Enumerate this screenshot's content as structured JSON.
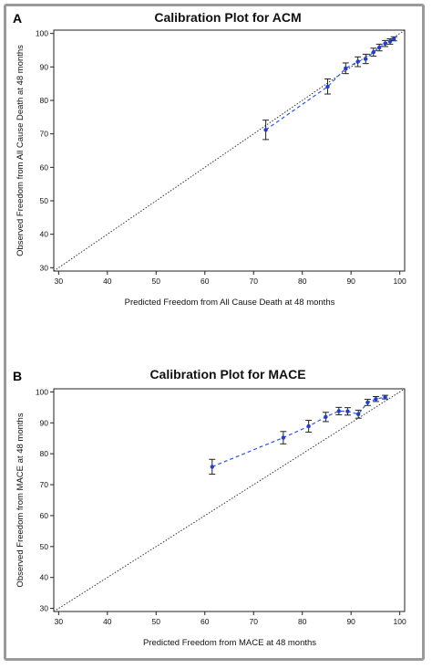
{
  "chart_data": [
    {
      "type": "scatter",
      "panel": "A",
      "title": "Calibration Plot for ACM",
      "xlabel": "Predicted Freedom from All Cause Death at 48 months",
      "ylabel": "Observed Freedom from All Cause Death at 48 months",
      "xlim": [
        29,
        101
      ],
      "ylim": [
        29,
        101
      ],
      "xticks": [
        30,
        40,
        50,
        60,
        70,
        80,
        90,
        100
      ],
      "yticks": [
        30,
        40,
        50,
        60,
        70,
        80,
        90,
        100
      ],
      "grid": false,
      "reference_line": true,
      "colors": {
        "points": "#1f3fd0",
        "line": "#2f55e0",
        "errorbar": "#222222",
        "reference": "#333333"
      },
      "points": [
        {
          "x": 72.5,
          "y": 71.2,
          "lo": 68.3,
          "hi": 74.1
        },
        {
          "x": 85.2,
          "y": 84.1,
          "lo": 81.9,
          "hi": 86.4
        },
        {
          "x": 88.9,
          "y": 89.6,
          "lo": 88.0,
          "hi": 91.2
        },
        {
          "x": 91.4,
          "y": 91.6,
          "lo": 90.1,
          "hi": 93.0
        },
        {
          "x": 93.0,
          "y": 92.4,
          "lo": 91.0,
          "hi": 93.8
        },
        {
          "x": 94.6,
          "y": 94.4,
          "lo": 93.2,
          "hi": 95.6
        },
        {
          "x": 95.8,
          "y": 95.8,
          "lo": 94.8,
          "hi": 96.8
        },
        {
          "x": 97.0,
          "y": 97.0,
          "lo": 96.1,
          "hi": 97.9
        },
        {
          "x": 98.0,
          "y": 97.6,
          "lo": 96.8,
          "hi": 98.4
        },
        {
          "x": 98.8,
          "y": 98.4,
          "lo": 97.8,
          "hi": 99.0
        }
      ]
    },
    {
      "type": "scatter",
      "panel": "B",
      "title": "Calibration Plot for MACE",
      "xlabel": "Predicted Freedom from MACE at 48 months",
      "ylabel": "Observed Freedom from MACE at 48 months",
      "xlim": [
        29,
        101
      ],
      "ylim": [
        29,
        101
      ],
      "xticks": [
        30,
        40,
        50,
        60,
        70,
        80,
        90,
        100
      ],
      "yticks": [
        30,
        40,
        50,
        60,
        70,
        80,
        90,
        100
      ],
      "grid": false,
      "reference_line": true,
      "colors": {
        "points": "#1f3fd0",
        "line": "#2f55e0",
        "errorbar": "#222222",
        "reference": "#333333"
      },
      "points": [
        {
          "x": 61.5,
          "y": 75.8,
          "lo": 73.4,
          "hi": 78.2
        },
        {
          "x": 76.1,
          "y": 85.2,
          "lo": 83.2,
          "hi": 87.2
        },
        {
          "x": 81.3,
          "y": 88.9,
          "lo": 87.0,
          "hi": 90.8
        },
        {
          "x": 84.8,
          "y": 91.9,
          "lo": 90.4,
          "hi": 93.4
        },
        {
          "x": 87.5,
          "y": 93.8,
          "lo": 92.6,
          "hi": 95.0
        },
        {
          "x": 89.3,
          "y": 93.7,
          "lo": 92.5,
          "hi": 94.9
        },
        {
          "x": 91.5,
          "y": 92.8,
          "lo": 91.5,
          "hi": 94.1
        },
        {
          "x": 93.4,
          "y": 96.6,
          "lo": 95.6,
          "hi": 97.6
        },
        {
          "x": 95.1,
          "y": 97.7,
          "lo": 96.9,
          "hi": 98.5
        },
        {
          "x": 97.0,
          "y": 98.3,
          "lo": 97.7,
          "hi": 98.9
        }
      ]
    }
  ]
}
